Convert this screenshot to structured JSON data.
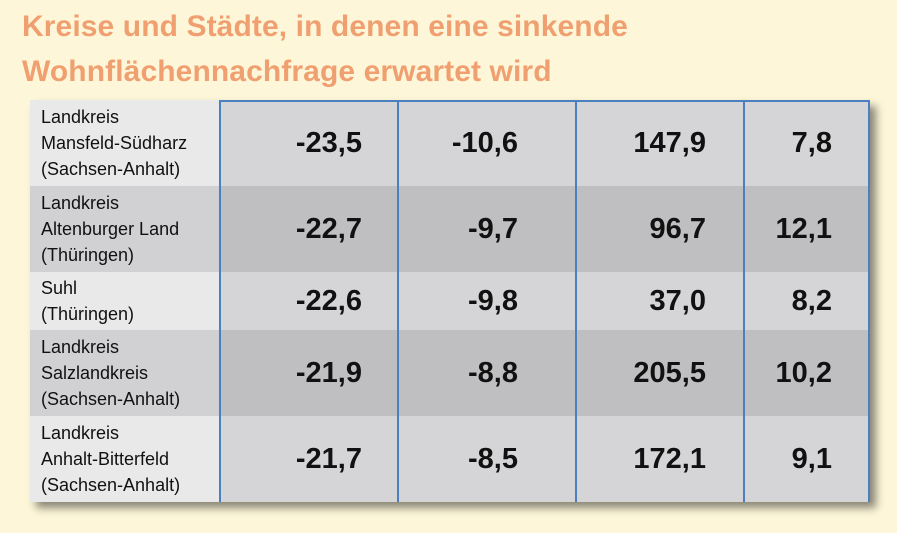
{
  "title_line1": "Kreise und Städte, in denen eine sinkende",
  "title_line2": "Wohnflächennachfrage erwartet wird",
  "chart_data": {
    "type": "table",
    "rows": [
      {
        "name": [
          "Landkreis",
          "Mansfeld-Südharz",
          "(Sachsen-Anhalt)"
        ],
        "values": [
          "-23,5",
          "-10,6",
          "147,9",
          "7,8"
        ]
      },
      {
        "name": [
          "Landkreis",
          "Altenburger Land",
          "(Thüringen)"
        ],
        "values": [
          "-22,7",
          "-9,7",
          "96,7",
          "12,1"
        ]
      },
      {
        "name": [
          "Suhl",
          "(Thüringen)"
        ],
        "values": [
          "-22,6",
          "-9,8",
          "37,0",
          "8,2"
        ]
      },
      {
        "name": [
          "Landkreis",
          "Salzlandkreis",
          "(Sachsen-Anhalt)"
        ],
        "values": [
          "-21,9",
          "-8,8",
          "205,5",
          "10,2"
        ]
      },
      {
        "name": [
          "Landkreis",
          "Anhalt-Bitterfeld",
          "(Sachsen-Anhalt)"
        ],
        "values": [
          "-21,7",
          "-8,5",
          "172,1",
          "9,1"
        ]
      }
    ]
  },
  "colors": {
    "background": "#fdf6d8",
    "title": "#f0a070",
    "divider": "#4a7fc0"
  }
}
